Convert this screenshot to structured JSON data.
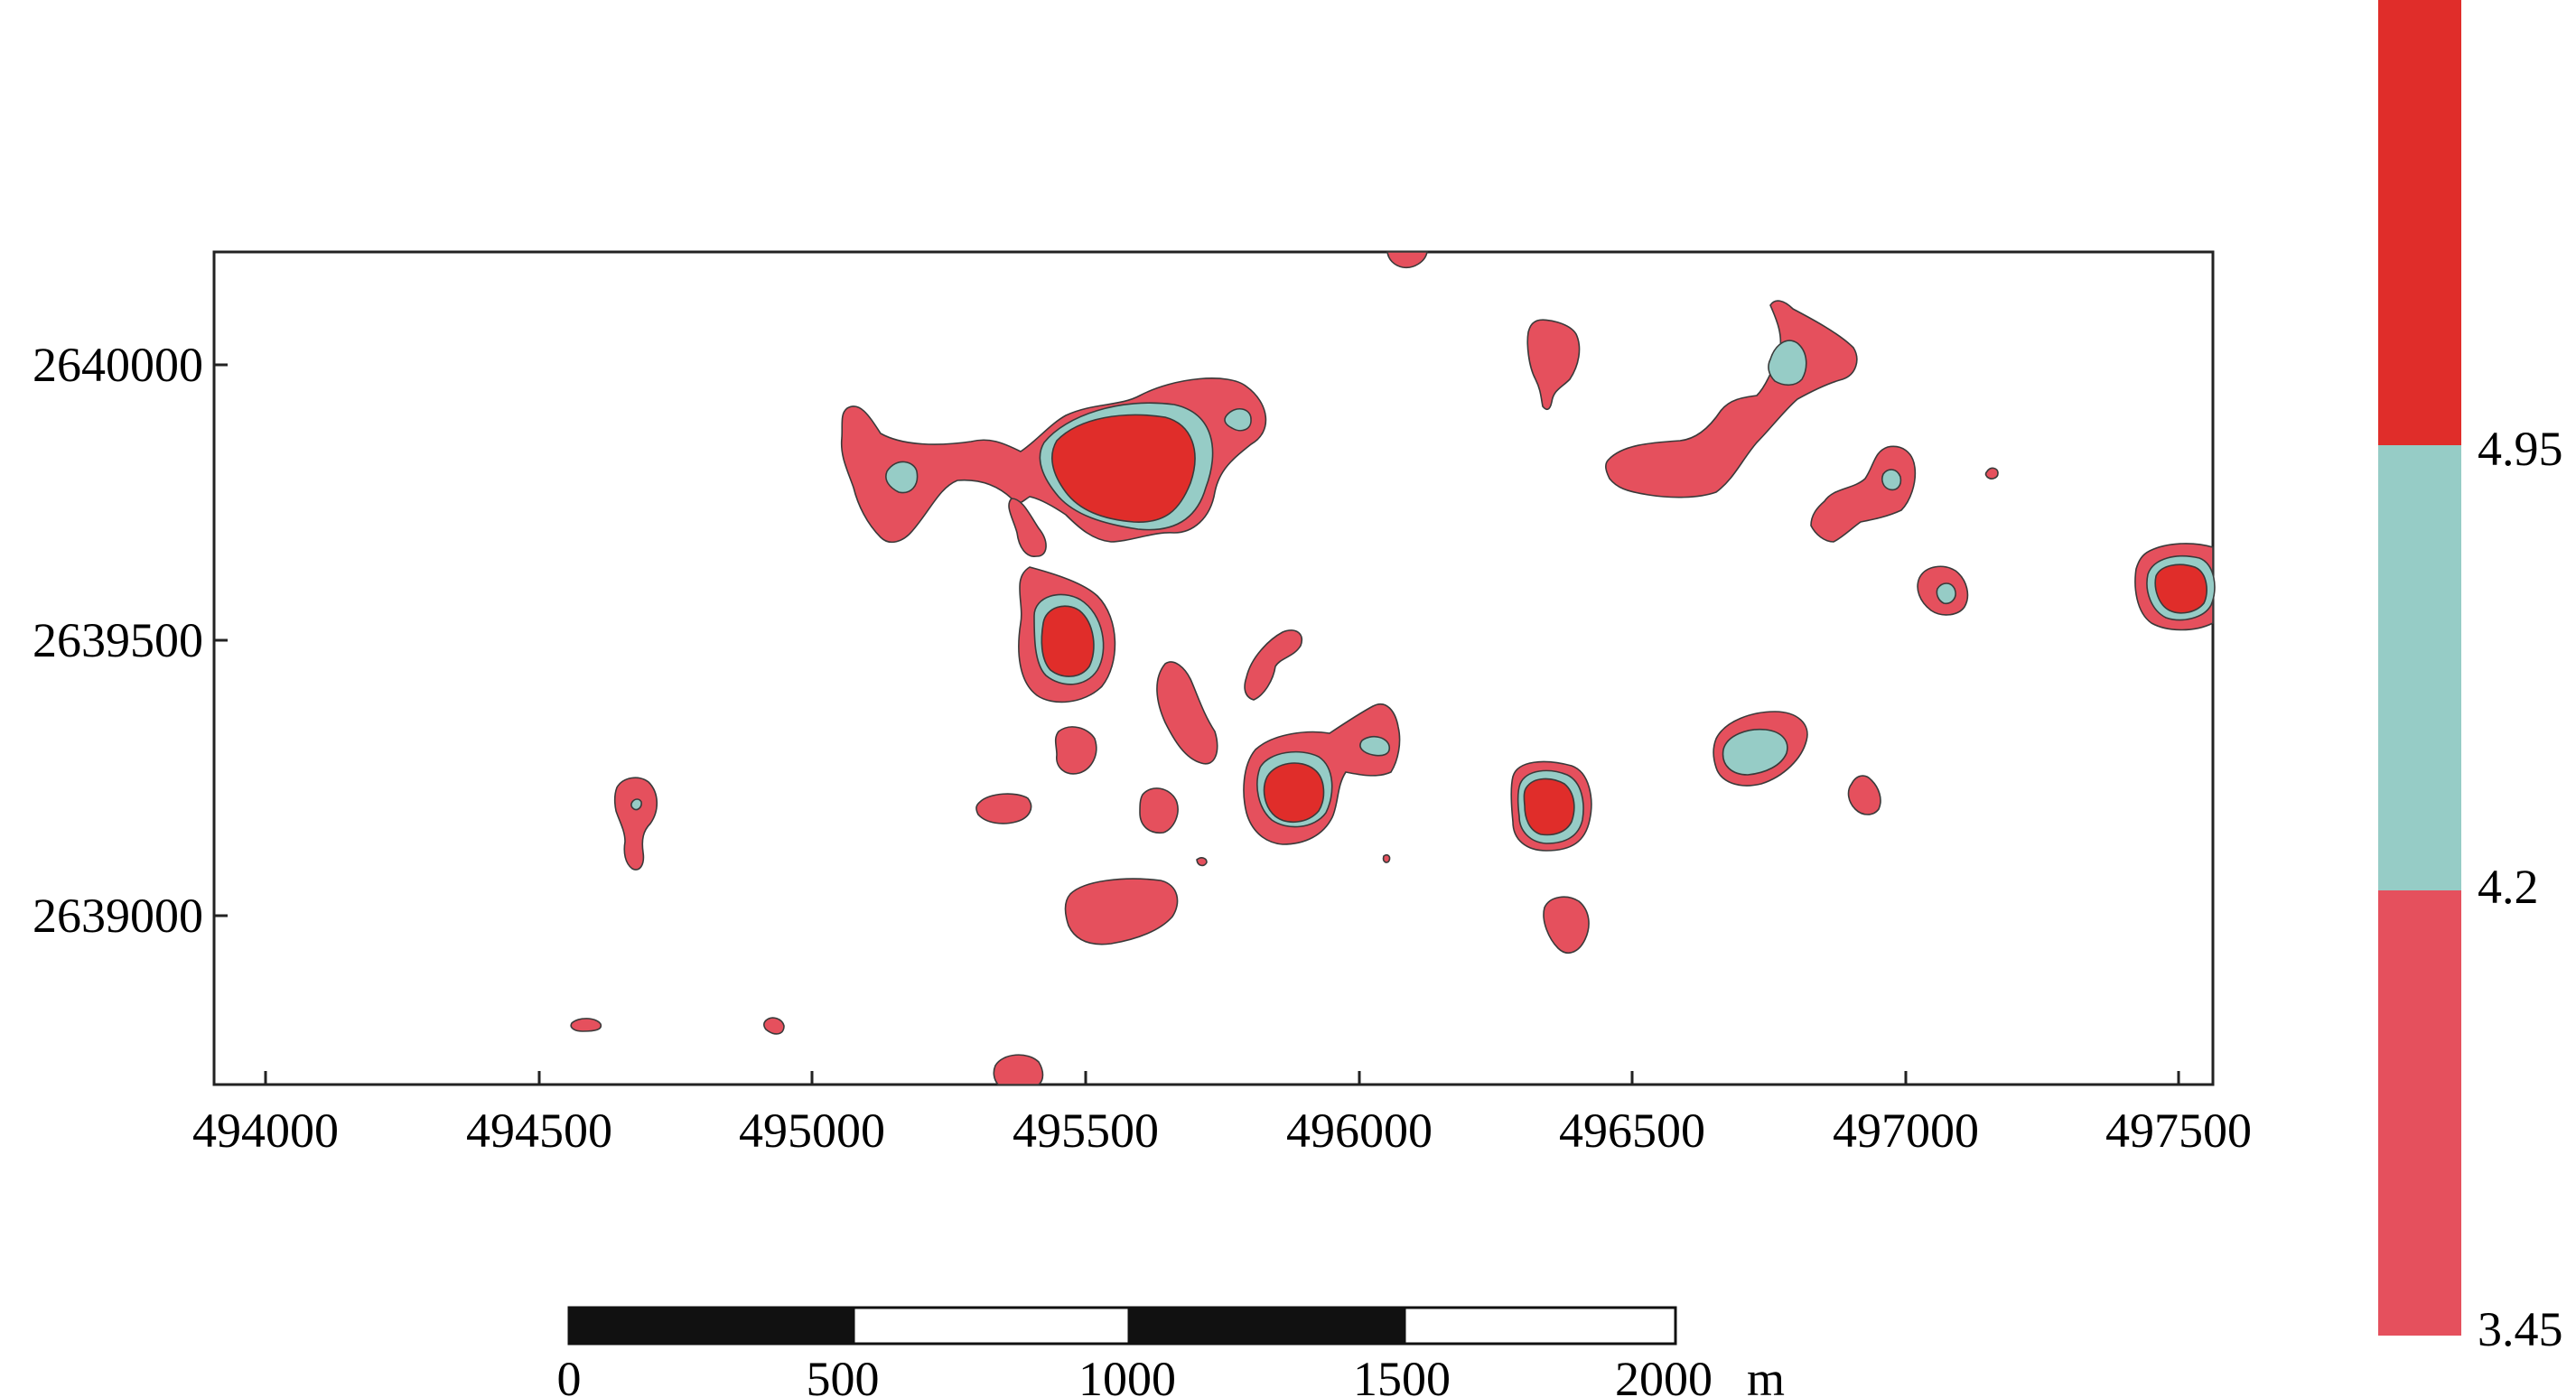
{
  "map": {
    "x_axis": {
      "tick_labels": [
        "494000",
        "494500",
        "495000",
        "495500",
        "496000",
        "496500",
        "497000",
        "497500"
      ]
    },
    "y_axis": {
      "tick_labels": [
        "2640000",
        "2639500",
        "2639000"
      ]
    }
  },
  "legend": {
    "labels": [
      "4.95",
      "4.2",
      "3.45"
    ],
    "colors": {
      "high": "#e02d2a",
      "mid": "#96ccc6",
      "low": "#e5505d"
    }
  },
  "scale_bar": {
    "labels": [
      "0",
      "500",
      "1000",
      "1500",
      "2000"
    ],
    "unit": "m"
  },
  "chart_data": {
    "type": "heatmap",
    "x_range": [
      493900,
      497560
    ],
    "y_range": [
      2638700,
      2640210
    ],
    "levels": [
      3.45,
      4.2,
      4.95
    ],
    "zones": [
      {
        "x": 495570,
        "y": 2639800,
        "class": "high"
      },
      {
        "x": 495470,
        "y": 2639500,
        "class": "high"
      },
      {
        "x": 495870,
        "y": 2639210,
        "class": "high"
      },
      {
        "x": 496350,
        "y": 2639200,
        "class": "high"
      },
      {
        "x": 497490,
        "y": 2639600,
        "class": "high"
      },
      {
        "x": 495160,
        "y": 2639800,
        "class": "mid"
      },
      {
        "x": 495770,
        "y": 2639910,
        "class": "mid"
      },
      {
        "x": 496030,
        "y": 2639310,
        "class": "mid"
      },
      {
        "x": 496720,
        "y": 2639300,
        "class": "mid"
      },
      {
        "x": 496780,
        "y": 2640000,
        "class": "mid"
      },
      {
        "x": 496970,
        "y": 2639790,
        "class": "mid"
      },
      {
        "x": 497080,
        "y": 2639590,
        "class": "mid"
      },
      {
        "x": 494680,
        "y": 2639200,
        "class": "mid"
      }
    ]
  }
}
